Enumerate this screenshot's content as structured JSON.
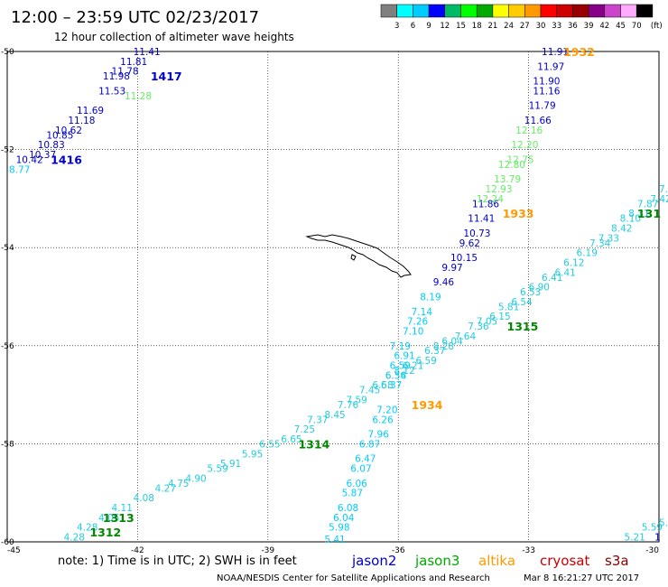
{
  "title": "12:00 – 23:59 UTC 02/23/2017",
  "subtitle": "12 hour collection of altimeter wave heights",
  "colorbar": {
    "unit": "(ft)",
    "ticks": [
      "3",
      "6",
      "9",
      "12",
      "15",
      "18",
      "21",
      "24",
      "27",
      "30",
      "33",
      "36",
      "39",
      "42",
      "45",
      "70"
    ],
    "colors": [
      "#808080",
      "#00ffff",
      "#00ccff",
      "#0000ff",
      "#00bb66",
      "#00ff00",
      "#00aa00",
      "#ffff00",
      "#ffcc00",
      "#ff9900",
      "#ff0000",
      "#cc0000",
      "#990000",
      "#880088",
      "#cc44cc",
      "#ffaaff",
      "#000000"
    ]
  },
  "axes": {
    "lon_ticks": [
      "-45",
      "-42",
      "-39",
      "-36",
      "-33",
      "-30"
    ],
    "lat_ticks": [
      "-50",
      "-52",
      "-54",
      "-56",
      "-58",
      "-60"
    ],
    "lon_values": [
      -45,
      -42,
      -39,
      -36,
      -33,
      -30
    ],
    "lat_values": [
      -50,
      -52,
      -54,
      -56,
      -58,
      -60
    ]
  },
  "passes": [
    {
      "label": "1417",
      "color": "#0000cc",
      "lon": -41.7,
      "lat": -50.5
    },
    {
      "label": "1416",
      "color": "#0000cc",
      "lon": -44.0,
      "lat": -52.2
    },
    {
      "label": "1932",
      "color": "#ff9900",
      "lon": -32.2,
      "lat": -50.0
    },
    {
      "label": "1933",
      "color": "#ff9900",
      "lon": -33.6,
      "lat": -53.3
    },
    {
      "label": "1315",
      "color": "#008800",
      "lon": -33.5,
      "lat": -55.6
    },
    {
      "label": "1934",
      "color": "#ff9900",
      "lon": -35.7,
      "lat": -57.2
    },
    {
      "label": "1314",
      "color": "#008800",
      "lon": -38.3,
      "lat": -58.0
    },
    {
      "label": "131",
      "color": "#008800",
      "lon": -30.5,
      "lat": -53.3
    },
    {
      "label": "1313",
      "color": "#008800",
      "lon": -42.8,
      "lat": -59.5
    },
    {
      "label": "1312",
      "color": "#008800",
      "lon": -43.1,
      "lat": -59.8
    }
  ],
  "tracks": [
    {
      "color": "#0000cc",
      "labels": [
        {
          "t": "11.41",
          "lon": -42.1,
          "lat": -50.0
        },
        {
          "t": "11.81",
          "lon": -42.4,
          "lat": -50.2
        },
        {
          "t": "11.78",
          "lon": -42.6,
          "lat": -50.4
        },
        {
          "t": "11.98",
          "lon": -42.8,
          "lat": -50.5
        },
        {
          "t": "11.53",
          "lon": -42.9,
          "lat": -50.8
        },
        {
          "t": "11.69",
          "lon": -43.4,
          "lat": -51.2
        },
        {
          "t": "11.18",
          "lon": -43.6,
          "lat": -51.4
        },
        {
          "t": "10.62",
          "lon": -43.9,
          "lat": -51.6
        },
        {
          "t": "10.85",
          "lon": -44.1,
          "lat": -51.7
        },
        {
          "t": "10.83",
          "lon": -44.3,
          "lat": -51.9
        },
        {
          "t": "10.37",
          "lon": -44.5,
          "lat": -52.1
        },
        {
          "t": "10.42",
          "lon": -44.8,
          "lat": -52.2
        }
      ]
    },
    {
      "color": "#66ee66",
      "labels": [
        {
          "t": "11.28",
          "lon": -42.3,
          "lat": -50.9
        }
      ]
    },
    {
      "color": "#00ccff",
      "labels": [
        {
          "t": "8.77",
          "lon": -45.0,
          "lat": -52.4
        }
      ]
    },
    {
      "color": "#0000cc",
      "labels": [
        {
          "t": "11.91",
          "lon": -32.7,
          "lat": -50.0
        },
        {
          "t": "11.97",
          "lon": -32.8,
          "lat": -50.3
        },
        {
          "t": "11.90",
          "lon": -32.9,
          "lat": -50.6
        },
        {
          "t": "11.16",
          "lon": -32.9,
          "lat": -50.8
        },
        {
          "t": "11.79",
          "lon": -33.0,
          "lat": -51.1
        },
        {
          "t": "11.66",
          "lon": -33.1,
          "lat": -51.4
        },
        {
          "t": "11.86",
          "lon": -34.3,
          "lat": -53.1
        },
        {
          "t": "11.41",
          "lon": -34.4,
          "lat": -53.4
        },
        {
          "t": "10.73",
          "lon": -34.5,
          "lat": -53.7
        },
        {
          "t": "9.62",
          "lon": -34.6,
          "lat": -53.9
        },
        {
          "t": "10.15",
          "lon": -34.8,
          "lat": -54.2
        },
        {
          "t": "9.97",
          "lon": -35.0,
          "lat": -54.4
        },
        {
          "t": "9.46",
          "lon": -35.2,
          "lat": -54.7
        }
      ]
    },
    {
      "color": "#66ee66",
      "labels": [
        {
          "t": "12.16",
          "lon": -33.3,
          "lat": -51.6
        },
        {
          "t": "12.20",
          "lon": -33.4,
          "lat": -51.9
        },
        {
          "t": "12.75",
          "lon": -33.5,
          "lat": -52.2
        },
        {
          "t": "12.80",
          "lon": -33.7,
          "lat": -52.3
        },
        {
          "t": "13.79",
          "lon": -33.8,
          "lat": -52.6
        },
        {
          "t": "12.93",
          "lon": -34.0,
          "lat": -52.8
        },
        {
          "t": "12.24",
          "lon": -34.2,
          "lat": -53.0
        }
      ]
    },
    {
      "color": "#00ccff",
      "labels": [
        {
          "t": "8.19",
          "lon": -35.5,
          "lat": -55.0
        },
        {
          "t": "7.14",
          "lon": -35.7,
          "lat": -55.3
        },
        {
          "t": "7.26",
          "lon": -35.8,
          "lat": -55.5
        },
        {
          "t": "7.10",
          "lon": -35.9,
          "lat": -55.7
        },
        {
          "t": "7.19",
          "lon": -36.2,
          "lat": -56.0
        },
        {
          "t": "6.91",
          "lon": -36.1,
          "lat": -56.2
        },
        {
          "t": "6.59",
          "lon": -36.2,
          "lat": -56.4
        },
        {
          "t": "6.36",
          "lon": -36.3,
          "lat": -56.6
        },
        {
          "t": "6.37",
          "lon": -36.4,
          "lat": -56.8
        },
        {
          "t": "7.20",
          "lon": -36.5,
          "lat": -57.3
        },
        {
          "t": "6.26",
          "lon": -36.6,
          "lat": -57.5
        },
        {
          "t": "7.96",
          "lon": -36.7,
          "lat": -57.8
        },
        {
          "t": "6.87",
          "lon": -36.9,
          "lat": -58.0
        },
        {
          "t": "6.47",
          "lon": -37.0,
          "lat": -58.3
        },
        {
          "t": "6.07",
          "lon": -37.1,
          "lat": -58.5
        },
        {
          "t": "6.06",
          "lon": -37.2,
          "lat": -58.8
        },
        {
          "t": "5.87",
          "lon": -37.3,
          "lat": -59.0
        },
        {
          "t": "6.08",
          "lon": -37.4,
          "lat": -59.3
        },
        {
          "t": "6.04",
          "lon": -37.5,
          "lat": -59.5
        },
        {
          "t": "5.98",
          "lon": -37.6,
          "lat": -59.7
        },
        {
          "t": "5.41",
          "lon": -37.7,
          "lat": -60.0
        }
      ]
    },
    {
      "color": "#22ccdd",
      "labels": [
        {
          "t": "4.28",
          "lon": -43.7,
          "lat": -59.9
        },
        {
          "t": "4.28",
          "lon": -43.4,
          "lat": -59.7
        },
        {
          "t": "4.05",
          "lon": -42.9,
          "lat": -59.5
        },
        {
          "t": "4.11",
          "lon": -42.6,
          "lat": -59.3
        },
        {
          "t": "4.08",
          "lon": -42.1,
          "lat": -59.1
        },
        {
          "t": "4.27",
          "lon": -41.6,
          "lat": -58.9
        },
        {
          "t": "4.75",
          "lon": -41.3,
          "lat": -58.8
        },
        {
          "t": "4.90",
          "lon": -40.9,
          "lat": -58.7
        },
        {
          "t": "5.59",
          "lon": -40.4,
          "lat": -58.5
        },
        {
          "t": "5.91",
          "lon": -40.1,
          "lat": -58.4
        },
        {
          "t": "5.95",
          "lon": -39.6,
          "lat": -58.2
        },
        {
          "t": "6.55",
          "lon": -39.2,
          "lat": -58.0
        },
        {
          "t": "6.65",
          "lon": -38.7,
          "lat": -57.9
        },
        {
          "t": "7.25",
          "lon": -38.4,
          "lat": -57.7
        },
        {
          "t": "7.37",
          "lon": -38.1,
          "lat": -57.5
        },
        {
          "t": "8.45",
          "lon": -37.7,
          "lat": -57.4
        },
        {
          "t": "7.76",
          "lon": -37.4,
          "lat": -57.2
        },
        {
          "t": "7.59",
          "lon": -37.2,
          "lat": -57.1
        },
        {
          "t": "7.45",
          "lon": -36.9,
          "lat": -56.9
        },
        {
          "t": "6.58",
          "lon": -36.6,
          "lat": -56.8
        },
        {
          "t": "6.54",
          "lon": -36.3,
          "lat": -56.6
        },
        {
          "t": "8.12",
          "lon": -36.1,
          "lat": -56.5
        },
        {
          "t": "6.21",
          "lon": -35.9,
          "lat": -56.4
        },
        {
          "t": "6.59",
          "lon": -35.6,
          "lat": -56.3
        },
        {
          "t": "6.37",
          "lon": -35.4,
          "lat": -56.1
        },
        {
          "t": "8.28",
          "lon": -35.2,
          "lat": -56.0
        },
        {
          "t": "6.04",
          "lon": -35.0,
          "lat": -55.9
        },
        {
          "t": "7.64",
          "lon": -34.7,
          "lat": -55.8
        },
        {
          "t": "7.36",
          "lon": -34.4,
          "lat": -55.6
        },
        {
          "t": "7.05",
          "lon": -34.2,
          "lat": -55.5
        },
        {
          "t": "6.15",
          "lon": -33.9,
          "lat": -55.4
        },
        {
          "t": "5.81",
          "lon": -33.7,
          "lat": -55.2
        },
        {
          "t": "6.54",
          "lon": -33.4,
          "lat": -55.1
        },
        {
          "t": "6.53",
          "lon": -33.2,
          "lat": -54.9
        },
        {
          "t": "6.90",
          "lon": -33.0,
          "lat": -54.8
        },
        {
          "t": "6.41",
          "lon": -32.7,
          "lat": -54.6
        },
        {
          "t": "6.41",
          "lon": -32.4,
          "lat": -54.5
        },
        {
          "t": "6.12",
          "lon": -32.2,
          "lat": -54.3
        },
        {
          "t": "6.19",
          "lon": -31.9,
          "lat": -54.1
        },
        {
          "t": "7.34",
          "lon": -31.6,
          "lat": -53.9
        },
        {
          "t": "7.33",
          "lon": -31.4,
          "lat": -53.8
        },
        {
          "t": "8.42",
          "lon": -31.1,
          "lat": -53.6
        },
        {
          "t": "8.10",
          "lon": -30.9,
          "lat": -53.4
        },
        {
          "t": "8.31",
          "lon": -30.7,
          "lat": -53.3
        },
        {
          "t": "7.87",
          "lon": -30.5,
          "lat": -53.1
        },
        {
          "t": "7.42",
          "lon": -30.2,
          "lat": -53.0
        },
        {
          "t": "7.",
          "lon": -30.0,
          "lat": -52.8
        },
        {
          "t": "5.59",
          "lon": -30.4,
          "lat": -59.7
        },
        {
          "t": "5.21",
          "lon": -30.8,
          "lat": -59.9
        },
        {
          "t": "5.4",
          "lon": -30.0,
          "lat": -59.6
        }
      ]
    },
    {
      "color": "#0000cc",
      "labels": [
        {
          "t": "1",
          "lon": -30.1,
          "lat": -59.9
        }
      ]
    }
  ],
  "footer": {
    "note": "note: 1) Time is in UTC; 2) SWH is in feet",
    "satellites": [
      {
        "name": "jason2",
        "color": "#0000cc"
      },
      {
        "name": "jason3",
        "color": "#00aa00"
      },
      {
        "name": "altika",
        "color": "#ff9900"
      },
      {
        "name": "cryosat",
        "color": "#cc0000"
      },
      {
        "name": "s3a",
        "color": "#880000"
      }
    ],
    "credit": "NOAA/NESDIS Center for Satellite Applications and Research",
    "timestamp": "Mar  8 16:21:27 UTC 2017"
  }
}
